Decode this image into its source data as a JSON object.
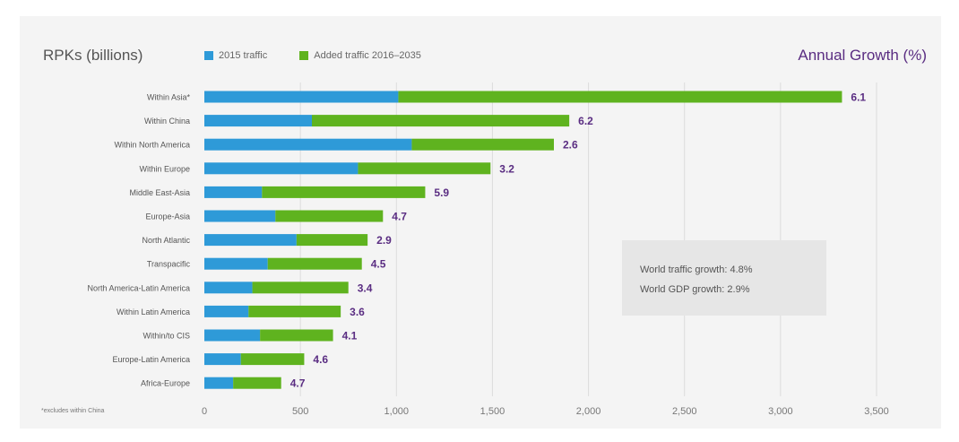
{
  "chart_data": {
    "type": "bar",
    "orientation": "horizontal",
    "stacked": true,
    "ylabel": "RPKs (billions)",
    "secondary_label": "Annual Growth (%)",
    "categories": [
      "Within Asia*",
      "Within China",
      "Within North America",
      "Within Europe",
      "Middle East-Asia",
      "Europe-Asia",
      "North Atlantic",
      "Transpacific",
      "North America-Latin America",
      "Within Latin America",
      "Within/to CIS",
      "Europe-Latin America",
      "Africa-Europe"
    ],
    "series": [
      {
        "name": "2015 traffic",
        "color": "#2e9ad8",
        "values": [
          1010,
          560,
          1080,
          800,
          300,
          370,
          480,
          330,
          250,
          230,
          290,
          190,
          150
        ]
      },
      {
        "name": "Added traffic 2016–2035",
        "color": "#5fb31f",
        "values": [
          2310,
          1340,
          740,
          690,
          850,
          560,
          370,
          490,
          500,
          480,
          380,
          330,
          250
        ]
      }
    ],
    "growth_labels": [
      "6.1",
      "6.2",
      "2.6",
      "3.2",
      "5.9",
      "4.7",
      "2.9",
      "4.5",
      "3.4",
      "3.6",
      "4.1",
      "4.6",
      "4.7"
    ],
    "xlim": [
      0,
      3500
    ],
    "xticks": [
      0,
      500,
      1000,
      1500,
      2000,
      2500,
      3000,
      3500
    ],
    "xtick_labels": [
      "0",
      "500",
      "1,000",
      "1,500",
      "2,000",
      "2,500",
      "3,000",
      "3,500"
    ],
    "grid": true,
    "legend_position": "top"
  },
  "info_box": {
    "line1": "World traffic growth: 4.8%",
    "line2": "World GDP growth: 2.9%"
  },
  "footnote": "*excludes within China",
  "colors": {
    "growth_label": "#5a2d82",
    "category_label": "#555555"
  }
}
